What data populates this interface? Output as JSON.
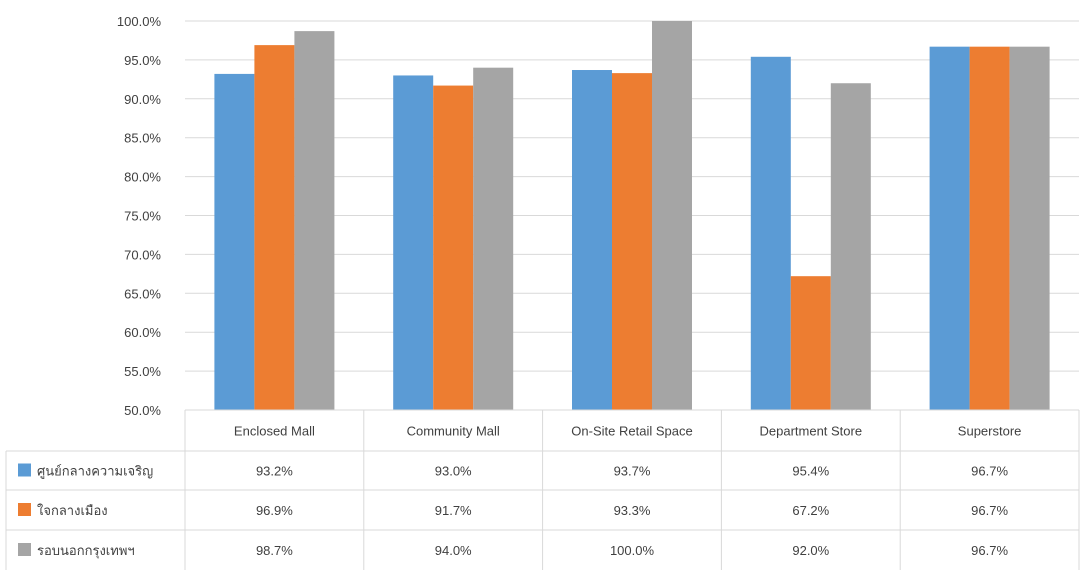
{
  "chart_data": {
    "type": "bar",
    "categories": [
      "Enclosed Mall",
      "Community Mall",
      "On-Site Retail Space",
      "Department Store",
      "Superstore"
    ],
    "series": [
      {
        "name": "ศูนย์กลางความเจริญ",
        "color": "#5B9BD5",
        "values": [
          93.2,
          93.0,
          93.7,
          95.4,
          96.7
        ],
        "labels": [
          "93.2%",
          "93.0%",
          "93.7%",
          "95.4%",
          "96.7%"
        ]
      },
      {
        "name": "ใจกลางเมือง",
        "color": "#ED7D31",
        "values": [
          96.9,
          91.7,
          93.3,
          67.2,
          96.7
        ],
        "labels": [
          "96.9%",
          "91.7%",
          "93.3%",
          "67.2%",
          "96.7%"
        ]
      },
      {
        "name": "รอบนอกกรุงเทพฯ",
        "color": "#A5A5A5",
        "values": [
          98.7,
          94.0,
          100.0,
          92.0,
          96.7
        ],
        "labels": [
          "98.7%",
          "94.0%",
          "100.0%",
          "92.0%",
          "96.7%"
        ]
      }
    ],
    "ylim": [
      50,
      100
    ],
    "ytick_labels": [
      "50.0%",
      "55.0%",
      "60.0%",
      "65.0%",
      "70.0%",
      "75.0%",
      "80.0%",
      "85.0%",
      "90.0%",
      "95.0%",
      "100.0%"
    ],
    "grid": true,
    "legend": "data-table",
    "title": "",
    "xlabel": "",
    "ylabel": ""
  }
}
